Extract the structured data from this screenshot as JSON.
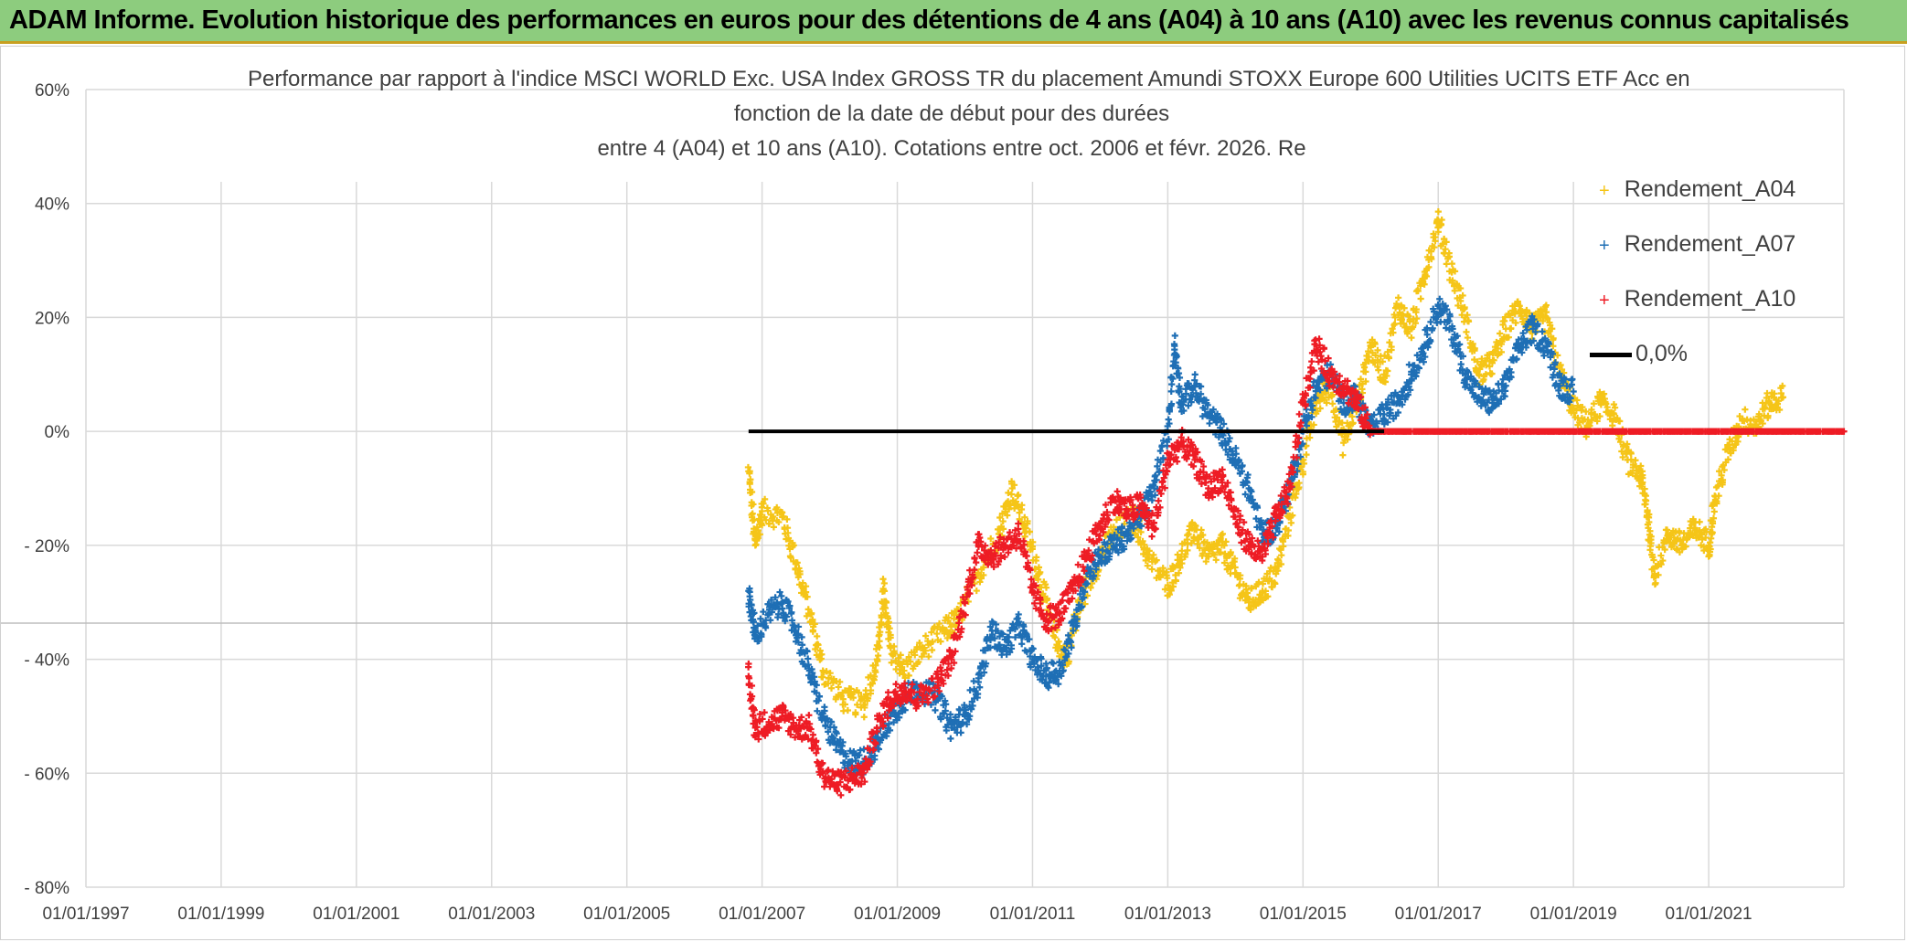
{
  "banner": {
    "title": "ADAM Informe. Evolution historique des performances en euros pour des détentions de 4 ans (A04) à 10 ans (A10) avec les revenus connus capitalisés"
  },
  "chart_data": {
    "type": "scatter",
    "title_lines": [
      "Performance  par rapport à l'indice MSCI WORLD Exc. USA Index GROSS TR  du placement Amundi STOXX Europe 600 Utilities UCITS ETF Acc en",
      "fonction de la date de début pour des durées",
      "entre 4 (A04) et 10 ans (A10). Cotations entre oct. 2006 et févr. 2026. Re"
    ],
    "x_start_year": 1997,
    "x_end_year": 2023,
    "x_tick_labels": [
      "01/01/1997",
      "01/01/1999",
      "01/01/2001",
      "01/01/2003",
      "01/01/2005",
      "01/01/2007",
      "01/01/2009",
      "01/01/2011",
      "01/01/2013",
      "01/01/2015",
      "01/01/2017",
      "01/01/2019",
      "01/01/2021"
    ],
    "y_tick_values": [
      60,
      40,
      20,
      0,
      -20,
      -40,
      -60,
      -80
    ],
    "y_tick_labels": [
      "60%",
      "40%",
      "20%",
      "0%",
      "- 20%",
      "- 40%",
      "- 60%",
      "- 80%"
    ],
    "ylim": [
      -80,
      60
    ],
    "series": [
      {
        "name": "Rendement_A04",
        "color": "#f5c518",
        "points": [
          [
            2006.8,
            -7
          ],
          [
            2006.9,
            -20
          ],
          [
            2007.0,
            -14
          ],
          [
            2007.3,
            -15
          ],
          [
            2007.5,
            -23
          ],
          [
            2007.7,
            -32
          ],
          [
            2007.9,
            -42
          ],
          [
            2008.2,
            -47
          ],
          [
            2008.5,
            -48
          ],
          [
            2008.7,
            -40
          ],
          [
            2008.8,
            -28
          ],
          [
            2008.9,
            -38
          ],
          [
            2009.1,
            -42
          ],
          [
            2009.4,
            -38
          ],
          [
            2009.7,
            -35
          ],
          [
            2009.9,
            -33
          ],
          [
            2010.2,
            -25
          ],
          [
            2010.5,
            -18
          ],
          [
            2010.7,
            -10
          ],
          [
            2010.9,
            -17
          ],
          [
            2011.1,
            -25
          ],
          [
            2011.3,
            -35
          ],
          [
            2011.5,
            -40
          ],
          [
            2011.7,
            -30
          ],
          [
            2012.0,
            -22
          ],
          [
            2012.2,
            -18
          ],
          [
            2012.5,
            -15
          ],
          [
            2012.7,
            -22
          ],
          [
            2013.0,
            -27
          ],
          [
            2013.2,
            -22
          ],
          [
            2013.4,
            -17
          ],
          [
            2013.6,
            -22
          ],
          [
            2013.8,
            -20
          ],
          [
            2014.0,
            -25
          ],
          [
            2014.2,
            -30
          ],
          [
            2014.4,
            -28
          ],
          [
            2014.6,
            -25
          ],
          [
            2014.8,
            -15
          ],
          [
            2015.0,
            -5
          ],
          [
            2015.2,
            5
          ],
          [
            2015.4,
            8
          ],
          [
            2015.6,
            -2
          ],
          [
            2015.8,
            5
          ],
          [
            2016.0,
            15
          ],
          [
            2016.2,
            10
          ],
          [
            2016.4,
            22
          ],
          [
            2016.6,
            18
          ],
          [
            2016.8,
            28
          ],
          [
            2017.0,
            37
          ],
          [
            2017.2,
            28
          ],
          [
            2017.4,
            20
          ],
          [
            2017.6,
            10
          ],
          [
            2017.8,
            12
          ],
          [
            2018.0,
            18
          ],
          [
            2018.2,
            22
          ],
          [
            2018.4,
            18
          ],
          [
            2018.6,
            20
          ],
          [
            2018.8,
            10
          ],
          [
            2019.0,
            4
          ],
          [
            2019.2,
            1
          ],
          [
            2019.4,
            5
          ],
          [
            2019.6,
            3
          ],
          [
            2019.8,
            -5
          ],
          [
            2020.0,
            -8
          ],
          [
            2020.1,
            -15
          ],
          [
            2020.2,
            -25
          ],
          [
            2020.4,
            -18
          ],
          [
            2020.6,
            -20
          ],
          [
            2020.8,
            -17
          ],
          [
            2021.0,
            -20
          ],
          [
            2021.1,
            -12
          ],
          [
            2021.3,
            -3
          ],
          [
            2021.5,
            2
          ],
          [
            2021.7,
            1
          ],
          [
            2021.9,
            5
          ],
          [
            2022.1,
            6
          ]
        ]
      },
      {
        "name": "Rendement_A07",
        "color": "#1f6fb5",
        "points": [
          [
            2006.8,
            -28
          ],
          [
            2006.9,
            -36
          ],
          [
            2007.1,
            -32
          ],
          [
            2007.3,
            -30
          ],
          [
            2007.5,
            -35
          ],
          [
            2007.7,
            -42
          ],
          [
            2007.9,
            -50
          ],
          [
            2008.1,
            -55
          ],
          [
            2008.3,
            -58
          ],
          [
            2008.5,
            -58
          ],
          [
            2008.7,
            -55
          ],
          [
            2008.9,
            -50
          ],
          [
            2009.1,
            -47
          ],
          [
            2009.3,
            -45
          ],
          [
            2009.6,
            -47
          ],
          [
            2009.8,
            -52
          ],
          [
            2010.0,
            -50
          ],
          [
            2010.2,
            -44
          ],
          [
            2010.4,
            -35
          ],
          [
            2010.6,
            -38
          ],
          [
            2010.8,
            -34
          ],
          [
            2011.0,
            -40
          ],
          [
            2011.2,
            -43
          ],
          [
            2011.4,
            -42
          ],
          [
            2011.6,
            -35
          ],
          [
            2011.8,
            -25
          ],
          [
            2012.0,
            -22
          ],
          [
            2012.2,
            -20
          ],
          [
            2012.4,
            -18
          ],
          [
            2012.6,
            -15
          ],
          [
            2012.8,
            -10
          ],
          [
            2013.0,
            0
          ],
          [
            2013.1,
            15
          ],
          [
            2013.2,
            5
          ],
          [
            2013.4,
            8
          ],
          [
            2013.6,
            3
          ],
          [
            2013.8,
            0
          ],
          [
            2014.0,
            -5
          ],
          [
            2014.2,
            -10
          ],
          [
            2014.4,
            -18
          ],
          [
            2014.6,
            -17
          ],
          [
            2014.8,
            -10
          ],
          [
            2015.0,
            0
          ],
          [
            2015.2,
            8
          ],
          [
            2015.4,
            10
          ],
          [
            2015.6,
            5
          ],
          [
            2015.8,
            6
          ],
          [
            2016.0,
            0
          ],
          [
            2016.2,
            3
          ],
          [
            2016.4,
            5
          ],
          [
            2016.6,
            10
          ],
          [
            2016.8,
            15
          ],
          [
            2017.0,
            22
          ],
          [
            2017.2,
            18
          ],
          [
            2017.4,
            10
          ],
          [
            2017.6,
            6
          ],
          [
            2017.8,
            5
          ],
          [
            2018.0,
            8
          ],
          [
            2018.2,
            15
          ],
          [
            2018.4,
            18
          ],
          [
            2018.6,
            15
          ],
          [
            2018.8,
            8
          ],
          [
            2019.0,
            7
          ]
        ]
      },
      {
        "name": "Rendement_A10",
        "color": "#ee1c25",
        "points": [
          [
            2006.8,
            -43
          ],
          [
            2006.9,
            -52
          ],
          [
            2007.1,
            -51
          ],
          [
            2007.3,
            -50
          ],
          [
            2007.5,
            -52
          ],
          [
            2007.7,
            -52
          ],
          [
            2007.9,
            -60
          ],
          [
            2008.1,
            -62
          ],
          [
            2008.3,
            -61
          ],
          [
            2008.5,
            -60
          ],
          [
            2008.7,
            -52
          ],
          [
            2008.9,
            -47
          ],
          [
            2009.1,
            -45
          ],
          [
            2009.3,
            -47
          ],
          [
            2009.6,
            -44
          ],
          [
            2009.8,
            -40
          ],
          [
            2010.0,
            -30
          ],
          [
            2010.2,
            -20
          ],
          [
            2010.4,
            -22
          ],
          [
            2010.6,
            -20
          ],
          [
            2010.8,
            -18
          ],
          [
            2011.0,
            -28
          ],
          [
            2011.2,
            -33
          ],
          [
            2011.4,
            -32
          ],
          [
            2011.6,
            -28
          ],
          [
            2011.8,
            -22
          ],
          [
            2012.0,
            -17
          ],
          [
            2012.2,
            -12
          ],
          [
            2012.4,
            -14
          ],
          [
            2012.6,
            -13
          ],
          [
            2012.8,
            -17
          ],
          [
            2013.0,
            -5
          ],
          [
            2013.2,
            -2
          ],
          [
            2013.4,
            -5
          ],
          [
            2013.6,
            -10
          ],
          [
            2013.8,
            -8
          ],
          [
            2014.0,
            -15
          ],
          [
            2014.2,
            -20
          ],
          [
            2014.4,
            -22
          ],
          [
            2014.6,
            -15
          ],
          [
            2014.8,
            -10
          ],
          [
            2015.0,
            5
          ],
          [
            2015.2,
            15
          ],
          [
            2015.4,
            10
          ],
          [
            2015.6,
            8
          ],
          [
            2015.8,
            5
          ],
          [
            2016.0,
            0
          ],
          [
            2016.5,
            0
          ],
          [
            2017.0,
            0
          ],
          [
            2017.5,
            0
          ],
          [
            2018.0,
            0
          ],
          [
            2018.5,
            0
          ],
          [
            2019.0,
            0
          ],
          [
            2019.5,
            0
          ],
          [
            2020.0,
            0
          ],
          [
            2020.5,
            0
          ],
          [
            2021.0,
            0
          ],
          [
            2021.5,
            0
          ],
          [
            2022.0,
            0
          ],
          [
            2022.5,
            0
          ],
          [
            2023.0,
            0
          ]
        ]
      },
      {
        "name": "0,0%",
        "color": "#000000",
        "type": "line",
        "points": [
          [
            2006.8,
            0
          ],
          [
            2016.2,
            0
          ]
        ]
      }
    ],
    "legend": [
      "Rendement_A04",
      "Rendement_A07",
      "Rendement_A10",
      "0,0%"
    ],
    "legend_position": "top-right",
    "grid": true
  }
}
